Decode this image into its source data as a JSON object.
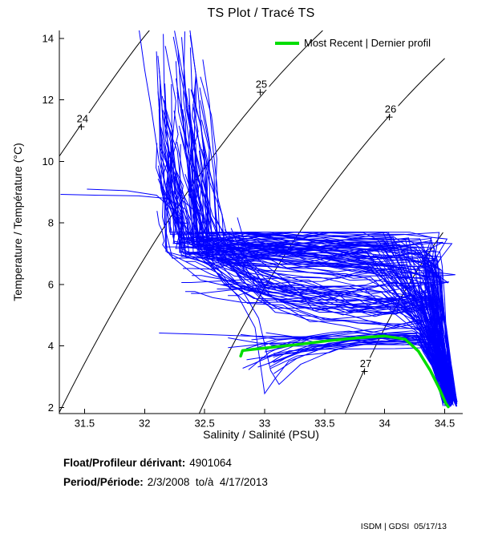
{
  "title": "TS Plot / Tracé TS",
  "legend": {
    "label": "Most Recent | Dernier profil"
  },
  "footer": {
    "float_label": "Float/Profileur dérivant:",
    "float_value": "4901064",
    "period_label": "Period/Période:",
    "period_value": "2/3/2008  to/à  4/17/2013",
    "credit": "ISDM | GDSI  05/17/13"
  },
  "colors": {
    "profiles": "#0000ff",
    "most_recent": "#00dd00",
    "contours": "#000000",
    "axis": "#000000",
    "background": "#ffffff"
  },
  "chart_data": {
    "type": "line",
    "title": "TS Plot / Tracé TS",
    "xlabel": "Salinity / Salinité (PSU)",
    "ylabel": "Temperature / Température (°C)",
    "xlim": [
      31.29,
      34.65
    ],
    "ylim": [
      1.8,
      14.26
    ],
    "grid": false,
    "legend_position": "top-right",
    "x_ticks": [
      31.5,
      32,
      32.5,
      33,
      33.5,
      34,
      34.5
    ],
    "x_tick_labels": [
      "31.5",
      "32",
      "32.5",
      "33",
      "33.5",
      "34",
      "34.5"
    ],
    "y_ticks": [
      2,
      4,
      6,
      8,
      10,
      12,
      14
    ],
    "y_tick_labels": [
      "2",
      "4",
      "6",
      "8",
      "10",
      "12",
      "14"
    ],
    "isopycnals": [
      {
        "label": "24",
        "start": [
          31.29,
          10.17
        ],
        "ctrl": [
          31.867,
          13.48
        ],
        "end": [
          32.04,
          14.26
        ],
        "label_at": [
          31.473,
          11.13
        ]
      },
      {
        "label": "25",
        "start": [
          31.29,
          1.84
        ],
        "ctrl": [
          32.328,
          9.96
        ],
        "end": [
          33.484,
          14.26
        ],
        "label_at": [
          32.963,
          12.25
        ]
      },
      {
        "label": "26",
        "start": [
          32.455,
          1.8
        ],
        "ctrl": [
          33.27,
          8.78
        ],
        "end": [
          34.5,
          13.35
        ],
        "label_at": [
          34.039,
          11.44
        ]
      },
      {
        "label": "27",
        "start": [
          33.671,
          1.8
        ],
        "ctrl": [
          34.059,
          5.44
        ],
        "end": [
          34.486,
          7.69
        ],
        "label_at": [
          33.832,
          3.17
        ]
      }
    ],
    "blue_profiles": {
      "name": "All profiles / Tous les profils",
      "color": "#0000ff",
      "count": 132,
      "seed": 20130517,
      "mix": {
        "warm": 0.56,
        "mid": 0.24,
        "cold": 0.2
      },
      "surface_T_range": [
        3.0,
        14.4
      ],
      "surface_S_range": [
        31.95,
        33.12
      ],
      "thermocline_T": 7.0,
      "mid_band": {
        "S_range": [
          32.4,
          34.45
        ],
        "T_range": [
          4.1,
          7.7
        ]
      },
      "deep_wedge": {
        "S_range": [
          34.26,
          34.6
        ],
        "T_end_range": [
          2.0,
          2.3
        ]
      }
    },
    "outlier_profiles": [
      [
        [
          31.3,
          8.93
        ],
        [
          31.62,
          8.9
        ],
        [
          31.95,
          8.88
        ],
        [
          32.18,
          8.8
        ],
        [
          32.34,
          8.45
        ],
        [
          32.45,
          7.6
        ],
        [
          32.6,
          7.1
        ],
        [
          33.0,
          6.85
        ],
        [
          33.45,
          6.7
        ],
        [
          33.9,
          6.55
        ],
        [
          34.25,
          6.2
        ],
        [
          34.42,
          5.2
        ],
        [
          34.48,
          4.1
        ],
        [
          34.52,
          3.1
        ],
        [
          34.57,
          2.2
        ]
      ],
      [
        [
          31.52,
          9.1
        ],
        [
          31.85,
          9.05
        ],
        [
          32.1,
          8.9
        ],
        [
          32.3,
          8.2
        ],
        [
          32.42,
          7.3
        ],
        [
          32.7,
          7.0
        ],
        [
          33.2,
          6.8
        ],
        [
          33.7,
          6.6
        ],
        [
          34.05,
          6.3
        ],
        [
          34.3,
          5.4
        ],
        [
          34.44,
          4.2
        ],
        [
          34.5,
          3.2
        ],
        [
          34.56,
          2.25
        ]
      ],
      [
        [
          32.3,
          7.1
        ],
        [
          32.55,
          6.6
        ],
        [
          32.78,
          5.6
        ],
        [
          32.92,
          4.6
        ],
        [
          33.0,
          2.45
        ],
        [
          33.08,
          2.9
        ],
        [
          33.2,
          3.5
        ],
        [
          33.5,
          3.95
        ],
        [
          33.9,
          4.2
        ],
        [
          34.18,
          4.35
        ],
        [
          34.32,
          4.1
        ],
        [
          34.43,
          3.3
        ],
        [
          34.52,
          2.5
        ],
        [
          34.56,
          2.15
        ]
      ],
      [
        [
          32.6,
          6.8
        ],
        [
          32.8,
          5.9
        ],
        [
          32.95,
          4.9
        ],
        [
          33.05,
          3.2
        ],
        [
          33.12,
          2.75
        ],
        [
          33.3,
          3.4
        ],
        [
          33.6,
          3.9
        ],
        [
          34.0,
          4.15
        ],
        [
          34.25,
          4.3
        ],
        [
          34.4,
          3.7
        ],
        [
          34.5,
          2.8
        ],
        [
          34.56,
          2.1
        ]
      ],
      [
        [
          31.95,
          14.4
        ],
        [
          32.0,
          13.0
        ],
        [
          32.06,
          11.6
        ],
        [
          32.12,
          10.0
        ],
        [
          32.22,
          8.6
        ],
        [
          32.38,
          7.3
        ],
        [
          32.6,
          7.0
        ],
        [
          33.05,
          6.8
        ],
        [
          33.5,
          6.65
        ],
        [
          33.95,
          6.45
        ],
        [
          34.3,
          5.6
        ],
        [
          34.44,
          4.4
        ],
        [
          34.5,
          3.3
        ],
        [
          34.57,
          2.2
        ]
      ],
      [
        [
          32.12,
          4.42
        ],
        [
          32.45,
          4.38
        ],
        [
          32.85,
          4.32
        ],
        [
          33.3,
          4.3
        ],
        [
          33.75,
          4.32
        ],
        [
          34.1,
          4.35
        ],
        [
          34.3,
          4.25
        ],
        [
          34.42,
          3.6
        ],
        [
          34.5,
          2.8
        ],
        [
          34.55,
          2.2
        ]
      ],
      [
        [
          32.85,
          3.55
        ],
        [
          33.1,
          3.7
        ],
        [
          33.5,
          3.9
        ],
        [
          33.9,
          4.1
        ],
        [
          34.15,
          4.2
        ],
        [
          34.3,
          4.0
        ],
        [
          34.42,
          3.4
        ],
        [
          34.5,
          2.7
        ],
        [
          34.56,
          2.1
        ]
      ]
    ],
    "most_recent": {
      "name": "Most Recent | Dernier profil",
      "color": "#00dd00",
      "width": 3.5,
      "points": [
        [
          32.8,
          3.67
        ],
        [
          32.816,
          3.85
        ],
        [
          33.0,
          3.93
        ],
        [
          33.26,
          4.04
        ],
        [
          33.53,
          4.17
        ],
        [
          33.8,
          4.27
        ],
        [
          34.0,
          4.32
        ],
        [
          34.17,
          4.22
        ],
        [
          34.28,
          3.83
        ],
        [
          34.38,
          3.2
        ],
        [
          34.45,
          2.65
        ],
        [
          34.51,
          2.13
        ],
        [
          34.53,
          2.02
        ]
      ]
    }
  }
}
